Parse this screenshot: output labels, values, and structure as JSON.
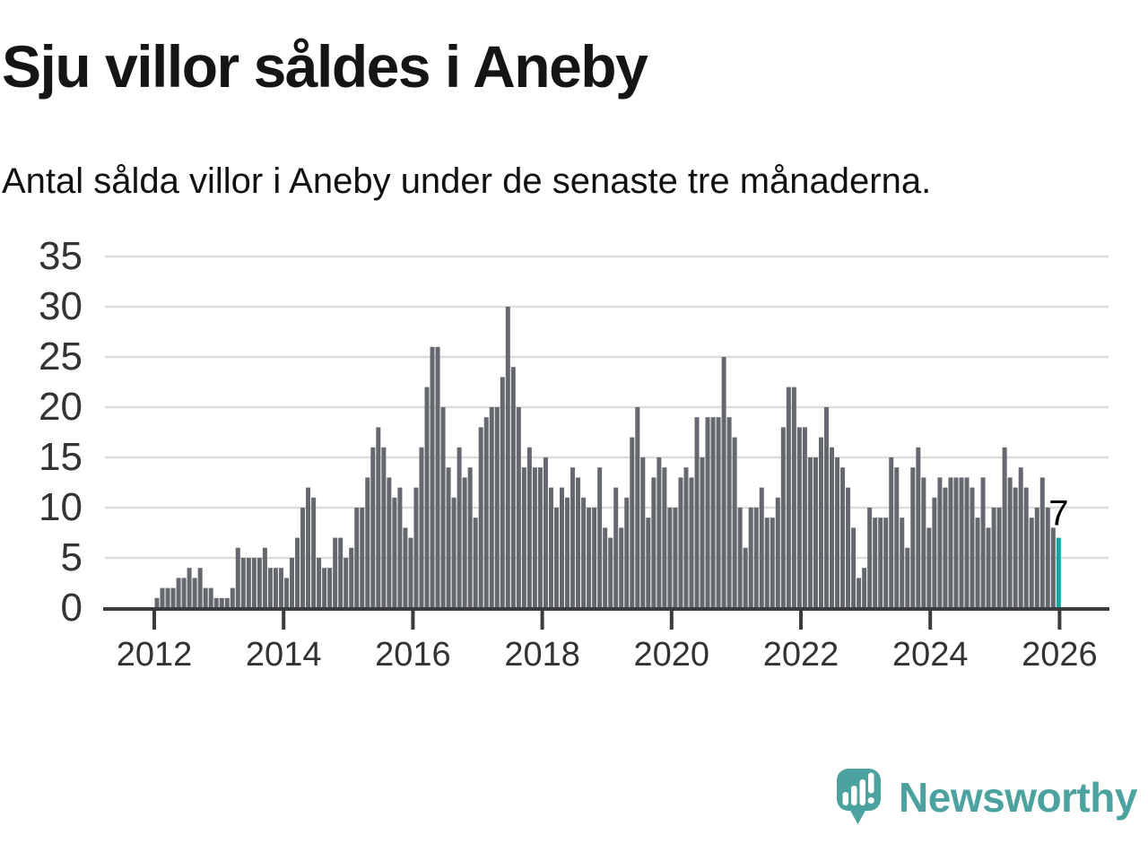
{
  "header": {
    "title": "Sju villor såldes i Aneby",
    "subtitle": "Antal sålda villor i Aneby under de senaste tre månaderna."
  },
  "chart_data": {
    "type": "bar",
    "title": "Sju villor såldes i Aneby",
    "subtitle": "Antal sålda villor i Aneby under de senaste tre månaderna.",
    "frequency": "monthly",
    "x_start": "2012-01",
    "x_end": "2025-12",
    "series": [
      {
        "name": "Antal sålda villor (rullande tre månader)",
        "values": [
          1,
          2,
          2,
          2,
          3,
          3,
          4,
          3,
          4,
          2,
          2,
          1,
          1,
          1,
          2,
          6,
          5,
          5,
          5,
          5,
          6,
          4,
          4,
          4,
          3,
          5,
          7,
          10,
          12,
          11,
          5,
          4,
          4,
          7,
          7,
          5,
          6,
          10,
          10,
          13,
          16,
          18,
          16,
          13,
          11,
          12,
          8,
          7,
          12,
          16,
          22,
          26,
          26,
          20,
          14,
          11,
          16,
          13,
          14,
          9,
          18,
          19,
          20,
          20,
          23,
          30,
          24,
          20,
          14,
          16,
          14,
          14,
          15,
          12,
          10,
          12,
          11,
          14,
          13,
          11,
          10,
          10,
          14,
          8,
          7,
          12,
          8,
          11,
          17,
          20,
          15,
          9,
          13,
          15,
          14,
          10,
          10,
          13,
          14,
          13,
          19,
          15,
          19,
          19,
          19,
          25,
          19,
          17,
          10,
          6,
          10,
          10,
          12,
          9,
          9,
          11,
          18,
          22,
          22,
          18,
          18,
          15,
          15,
          17,
          20,
          16,
          15,
          14,
          12,
          8,
          3,
          4,
          10,
          9,
          9,
          9,
          15,
          14,
          9,
          6,
          14,
          16,
          13,
          8,
          11,
          13,
          12,
          13,
          13,
          13,
          13,
          12,
          9,
          13,
          8,
          10,
          10,
          16,
          13,
          12,
          14,
          12,
          9,
          10,
          13,
          10,
          8,
          7
        ]
      }
    ],
    "highlight": {
      "index": 167,
      "value": 7,
      "label": "7"
    },
    "ylim": [
      0,
      35
    ],
    "y_ticks": [
      0,
      5,
      10,
      15,
      20,
      25,
      30,
      35
    ],
    "x_tick_labels": [
      "2012",
      "2014",
      "2016",
      "2018",
      "2020",
      "2022",
      "2024",
      "2026"
    ],
    "grid": "horizontal",
    "legend": "none",
    "colors": {
      "bar": "#65686e",
      "highlight": "#12a7a0",
      "gridline": "#dcdcdc",
      "axis": "#3a3c3e",
      "tick_label": "#333333",
      "value_label": "#000000"
    }
  },
  "footer": {
    "brand": "Newsworthy",
    "brand_color": "#4ba29e",
    "icon": "newsworthy-chart-bubble-icon"
  }
}
